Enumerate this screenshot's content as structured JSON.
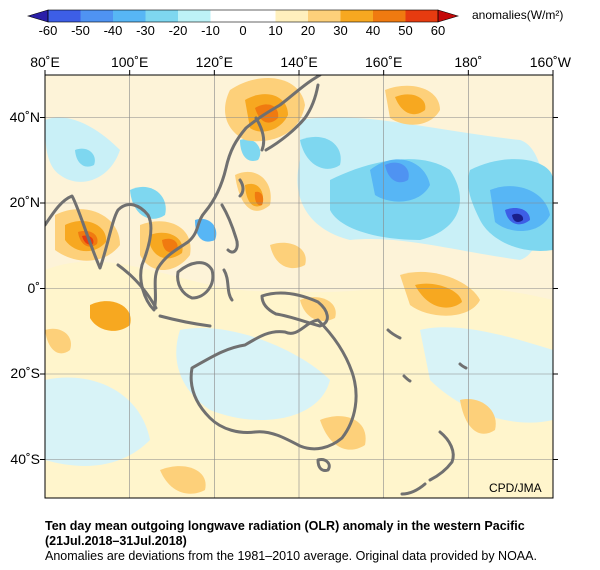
{
  "colorbar": {
    "ticks": [
      "-60",
      "-50",
      "-40",
      "-30",
      "-20",
      "-10",
      "0",
      "10",
      "20",
      "30",
      "40",
      "50",
      "60"
    ],
    "unit_label": "anomalies(W/m²)",
    "colors": [
      "#3d5ee6",
      "#4f93f2",
      "#57b6f5",
      "#7ed7f0",
      "#bdf2f7",
      "#ffffff",
      "#ffffff",
      "#fff0bd",
      "#fdd07a",
      "#f7a820",
      "#f07a10",
      "#e63b10"
    ]
  },
  "map": {
    "lon_labels": [
      "80˚E",
      "100˚E",
      "120˚E",
      "140˚E",
      "160˚E",
      "180˚",
      "160˚W"
    ],
    "lat_labels": [
      "40˚N",
      "20˚N",
      "0˚",
      "20˚S",
      "40˚S"
    ],
    "credit": "CPD/JMA"
  },
  "caption": {
    "title_line1": "Ten day mean outgoing longwave radiation (OLR) anomaly in the western Pacific",
    "title_line2": "(21Jul.2018–31Jul.2018)",
    "note": "Anomalies are deviations from the 1981–2010 average. Original data provided by NOAA."
  }
}
